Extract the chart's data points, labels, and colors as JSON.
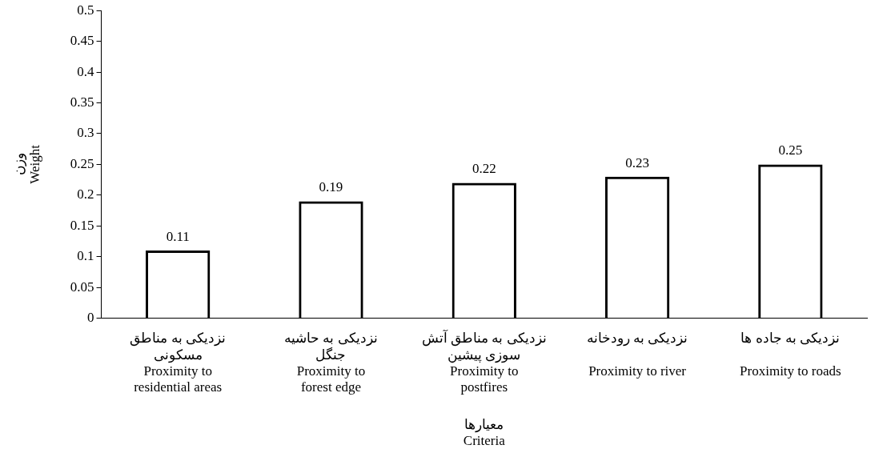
{
  "chart_data": {
    "type": "bar",
    "categories": [
      "نزدیکی به مناطق\nمسکونی\nProximity to\nresidential areas",
      "نزدیکی به حاشیه\nجنگل\nProximity to\nforest edge",
      "نزدیکی به مناطق آتش\nسوزی پیشین\nProximity to\npostfires",
      "نزدیکی به رودخانه\n\nProximity to river",
      "نزدیکی به جاده ها\n\nProximity to roads"
    ],
    "values": [
      0.11,
      0.19,
      0.22,
      0.23,
      0.25
    ],
    "color": "#000000",
    "xlabel": "معیارها\nCriteria",
    "ylabel": "وزن\nWeight",
    "ylim": [
      0,
      0.5
    ],
    "yticks": [
      0,
      0.05,
      0.1,
      0.15,
      0.2,
      0.25,
      0.3,
      0.35,
      0.4,
      0.45,
      0.5
    ],
    "data_labels": true,
    "grid": false,
    "legend": false
  }
}
